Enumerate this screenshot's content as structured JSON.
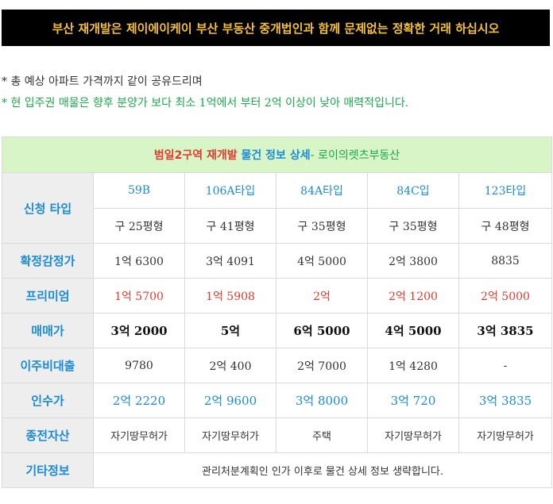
{
  "banner": "부산 재개발은 제이에이케이 부산 부동산 중개법인과 함께 문제없는 정확한 거래 하십시오",
  "notes": [
    "* 총 예상 아파트 가격까지 같이 공유드리며",
    "* 현 입주권 매물은 향후 분양가 보다 최소 1억에서 부터 2억 이상이 낮아 매력적입니다."
  ],
  "table": {
    "title": {
      "part1": "범일2구역 재개발",
      "part2": "물건 정보 상세",
      "part3": "- 로이의렛츠부동산"
    },
    "headers": {
      "type": "신청 타입",
      "appraisal": "확정감정가",
      "premium": "프리미엄",
      "sale": "매매가",
      "loan": "이주비대출",
      "takeover": "인수가",
      "asset": "종전자산",
      "etc": "기타정보"
    },
    "types": [
      "59B",
      "106A타입",
      "84A타입",
      "84C입",
      "123타입"
    ],
    "old_sizes": [
      "구 25평형",
      "구 41평형",
      "구 35평형",
      "구 35평형",
      "구 48평형"
    ],
    "appraisal": [
      "1억 6300",
      "3억 4091",
      "4억 5000",
      "2억 3800",
      "8835"
    ],
    "premium": [
      "1억 5700",
      "1억 5908",
      "2억",
      "2억 1200",
      "2억 5000"
    ],
    "sale": [
      "3억 2000",
      "5억",
      "6억 5000",
      "4억 5000",
      "3억 3835"
    ],
    "loan": [
      "9780",
      "2억 400",
      "2억 7000",
      "1억 4280",
      "-"
    ],
    "takeover": [
      "2억 2220",
      "2억 9600",
      "3억 8000",
      "3억 720",
      "3억 3835"
    ],
    "asset": [
      "자기땅무허가",
      "자기땅무허가",
      "주택",
      "자기땅무허가",
      "자기땅무허가"
    ],
    "etc": "관리처분계획인 인가 이후로 물건 상세 정보 생략합니다."
  }
}
